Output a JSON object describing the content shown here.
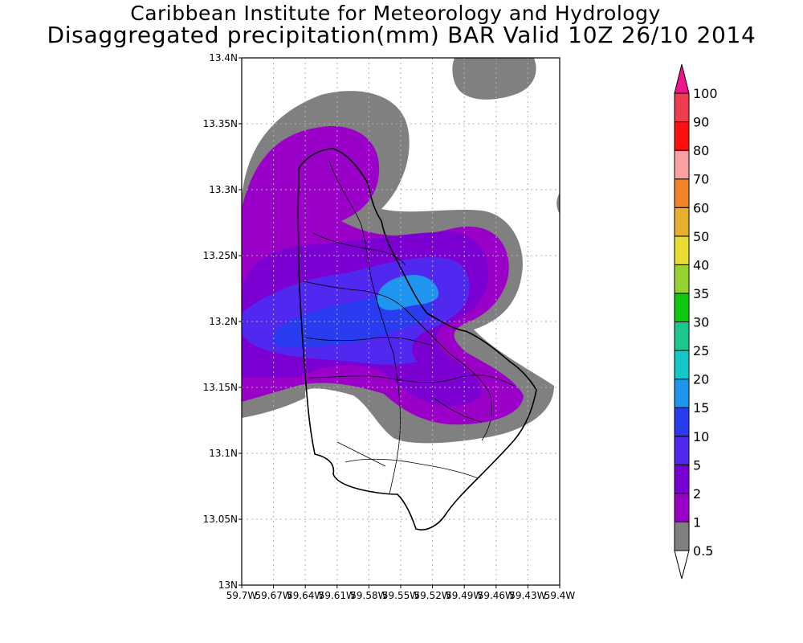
{
  "title": {
    "line1": "Caribbean Institute for Meteorology and Hydrology",
    "line2": "Disaggregated precipitation(mm) BAR Valid 10Z 26/10 2014"
  },
  "map": {
    "region": "Barbados",
    "lat_ticks": [
      "13N",
      "13.05N",
      "13.1N",
      "13.15N",
      "13.2N",
      "13.25N",
      "13.3N",
      "13.35N",
      "13.4N"
    ],
    "lon_ticks": [
      "59.7W",
      "59.67W",
      "59.64W",
      "59.61W",
      "59.58W",
      "59.55W",
      "59.52W",
      "59.49W",
      "59.46W",
      "59.43W",
      "59.4W"
    ],
    "lat_range": [
      13.0,
      13.4
    ],
    "lon_range": [
      -59.7,
      -59.4
    ],
    "grid": "dotted"
  },
  "legend": {
    "levels": [
      {
        "label": "0.5",
        "color": "#ffffff"
      },
      {
        "label": "1",
        "color": "#808080"
      },
      {
        "label": "2",
        "color": "#9b00c8"
      },
      {
        "label": "5",
        "color": "#7800d2"
      },
      {
        "label": "10",
        "color": "#5028f0"
      },
      {
        "label": "15",
        "color": "#2a3cf0"
      },
      {
        "label": "20",
        "color": "#1e96f0"
      },
      {
        "label": "25",
        "color": "#14c8c8"
      },
      {
        "label": "30",
        "color": "#1ec88c"
      },
      {
        "label": "35",
        "color": "#10c810"
      },
      {
        "label": "40",
        "color": "#96d232"
      },
      {
        "label": "50",
        "color": "#e6dc32"
      },
      {
        "label": "60",
        "color": "#e6af2d"
      },
      {
        "label": "70",
        "color": "#f08228"
      },
      {
        "label": "80",
        "color": "#faa0a0"
      },
      {
        "label": "90",
        "color": "#ff1010"
      },
      {
        "label": "100",
        "color": "#f03c50"
      }
    ],
    "over_color": "#f0148c"
  }
}
